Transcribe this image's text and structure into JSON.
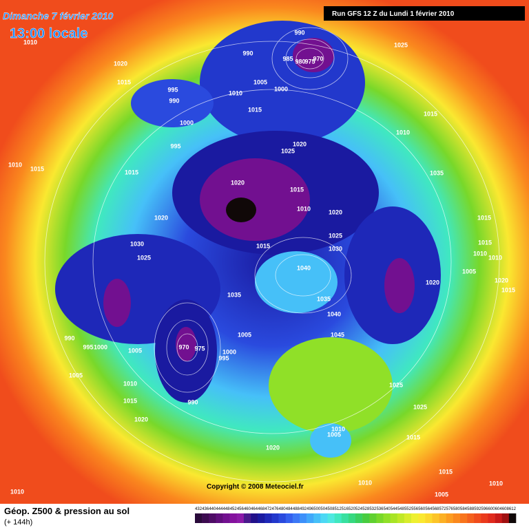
{
  "header": {
    "title": "Dimanche 7 février 2010",
    "time": "13:00 locale",
    "run": "Run GFS 12 Z du Lundi 1 février 2010"
  },
  "map": {
    "isobar_labels": [
      1010,
      990,
      1025,
      1020,
      990,
      985,
      980,
      975,
      970,
      1015,
      1005,
      995,
      1010,
      1000,
      990,
      1015,
      1015,
      1000,
      1010,
      995,
      1020,
      1025,
      1010,
      1015,
      1015,
      1035,
      1020,
      1015,
      1010,
      1020,
      1020,
      1015,
      1025,
      1030,
      1015,
      1030,
      1015,
      1025,
      1010,
      1010,
      1040,
      1005,
      1020,
      1020,
      1035,
      1015,
      1035,
      1040,
      990,
      1005,
      1045,
      995,
      1000,
      1005,
      970,
      975,
      1000,
      995,
      1005,
      1010,
      1025,
      1015,
      990,
      1025,
      1020,
      1010,
      1005,
      1015,
      1020,
      1010,
      1015,
      1005,
      1010,
      1010
    ]
  },
  "footer": {
    "copyright": "Copyright © 2008 Meteociel.fr",
    "field": "Géop. Z500 & pression au sol",
    "lead": "(+ 144h)"
  },
  "legend": {
    "levels": [
      432,
      436,
      440,
      444,
      448,
      452,
      456,
      460,
      464,
      468,
      472,
      476,
      480,
      484,
      488,
      492,
      496,
      500,
      504,
      508,
      512,
      516,
      520,
      524,
      528,
      532,
      536,
      540,
      544,
      548,
      552,
      556,
      560,
      564,
      568,
      572,
      576,
      580,
      584,
      588,
      592,
      596,
      600,
      604,
      608,
      612
    ],
    "colors": [
      "#2a0a3a",
      "#3c0b50",
      "#4e0c66",
      "#600e7c",
      "#721090",
      "#84129e",
      "#8c1aa8",
      "#4a1a8c",
      "#22108a",
      "#1a1aa0",
      "#1e28b8",
      "#2238cc",
      "#2a4ade",
      "#3460ee",
      "#3c78f6",
      "#3c90fa",
      "#40a8fa",
      "#46c0f8",
      "#4cd8f4",
      "#4ee8e0",
      "#40e8c0",
      "#38e0a0",
      "#36d880",
      "#3ad060",
      "#48cc40",
      "#60d030",
      "#78d82a",
      "#90e028",
      "#a8e426",
      "#c0e828",
      "#d8ec2c",
      "#eef030",
      "#fae830",
      "#fcd82c",
      "#fcc428",
      "#fcb024",
      "#fc9c20",
      "#fa881e",
      "#f8741c",
      "#f4601c",
      "#f04c1c",
      "#ea3a1c",
      "#e02a1c",
      "#c81a18",
      "#a01010",
      "#100808"
    ]
  }
}
